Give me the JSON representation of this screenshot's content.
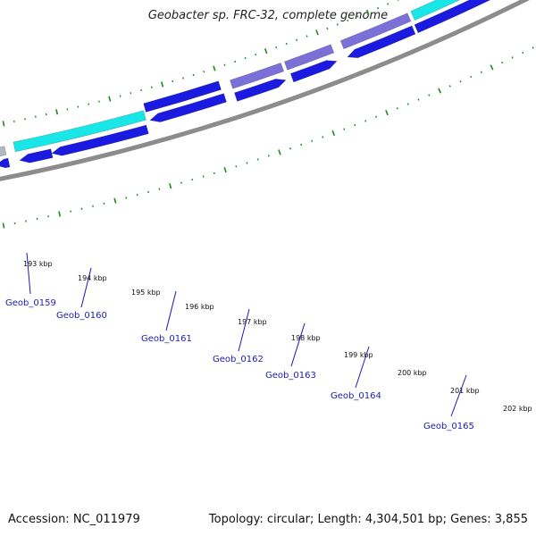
{
  "title": "Geobacter sp. FRC-32, complete genome",
  "footer": {
    "accession": "Accession: NC_011979",
    "summary": "Topology: circular; Length: 4,304,501 bp; Genes: 3,855"
  },
  "colors": {
    "backbone": "#8c8c8c",
    "gene_dark_blue": "#1a1ae0",
    "gene_cyan": "#19e6e6",
    "gene_purple": "#7b70d8",
    "gene_gray": "#b0b8c0",
    "tick_green": "#1f8a1f",
    "gene_label": "#1c1cb4"
  },
  "kbp_labels": [
    "193 kbp",
    "194 kbp",
    "195 kbp",
    "196 kbp",
    "197 kbp",
    "198 kbp",
    "199 kbp",
    "200 kbp",
    "201 kbp",
    "202 kbp"
  ],
  "gene_labels": [
    "Geob_0159",
    "Geob_0160",
    "Geob_0161",
    "Geob_0162",
    "Geob_0163",
    "Geob_0164",
    "Geob_0165"
  ]
}
